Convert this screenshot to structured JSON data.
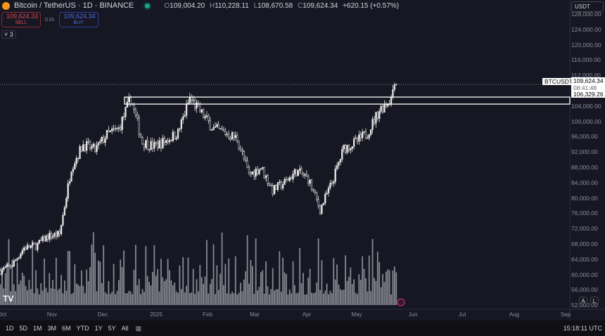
{
  "header": {
    "symbol": "Bitcoin / TetherUS · 1D · BINANCE",
    "open_label": "O",
    "open": "109,004.20",
    "high_label": "H",
    "high": "110,228.11",
    "low_label": "L",
    "low": "108,670.58",
    "close_label": "C",
    "close": "109,624.34",
    "change": "+620.15 (+0.57%)"
  },
  "trade": {
    "sell_price": "109,624.33",
    "sell_label": "SELL",
    "spread": "0.01",
    "buy_price": "109,624.34",
    "buy_label": "BUY"
  },
  "indicators_collapse": "3",
  "currency": "USDT",
  "price_axis": [
    "128,000.00",
    "124,000.00",
    "120,000.00",
    "116,000.00",
    "112,000.00",
    "104,000.00",
    "100,000.00",
    "96,000.00",
    "92,000.00",
    "88,000.00",
    "84,000.00",
    "80,000.00",
    "76,000.00",
    "72,000.00",
    "68,000.00",
    "64,000.00",
    "60,000.00",
    "56,000.00",
    "52,000.00"
  ],
  "price_tags": {
    "symbol": "BTCUSDT",
    "last": "109,624.34",
    "countdown": "08:41:48",
    "level": "106,329.26"
  },
  "time_axis": [
    "Oct",
    "Nov",
    "Dec",
    "2025",
    "Feb",
    "Mar",
    "Apr",
    "May",
    "Jun",
    "Jul",
    "Aug",
    "Sep"
  ],
  "ranges": [
    "1D",
    "5D",
    "1M",
    "3M",
    "6M",
    "YTD",
    "1Y",
    "5Y",
    "All"
  ],
  "clock": "15:18:11 UTC",
  "scale_buttons": {
    "auto": "A",
    "log": "L"
  },
  "logo": "TV",
  "colors": {
    "candle": "#e8e8e8",
    "volume": "#9a9ca6",
    "background": "#161722",
    "sell": "#e04a55",
    "buy": "#4e6bf0"
  },
  "chart_data": {
    "type": "candlestick",
    "interval": "1D",
    "ylim": [
      50000,
      130000
    ],
    "weekly_close_approx": [
      [
        "2024-10-01",
        61000
      ],
      [
        "2024-10-08",
        62500
      ],
      [
        "2024-10-15",
        67000
      ],
      [
        "2024-10-22",
        67500
      ],
      [
        "2024-10-29",
        70000
      ],
      [
        "2024-11-05",
        70500
      ],
      [
        "2024-11-12",
        88000
      ],
      [
        "2024-11-19",
        94000
      ],
      [
        "2024-11-26",
        92500
      ],
      [
        "2024-12-03",
        96500
      ],
      [
        "2024-12-10",
        98000
      ],
      [
        "2024-12-17",
        106000
      ],
      [
        "2024-12-24",
        94500
      ],
      [
        "2024-12-31",
        93500
      ],
      [
        "2025-01-07",
        95000
      ],
      [
        "2025-01-14",
        97000
      ],
      [
        "2025-01-21",
        106000
      ],
      [
        "2025-01-28",
        102000
      ],
      [
        "2025-02-04",
        98000
      ],
      [
        "2025-02-11",
        97000
      ],
      [
        "2025-02-18",
        95500
      ],
      [
        "2025-02-25",
        86000
      ],
      [
        "2025-03-04",
        88000
      ],
      [
        "2025-03-11",
        82000
      ],
      [
        "2025-03-18",
        84000
      ],
      [
        "2025-03-25",
        87000
      ],
      [
        "2025-04-01",
        85000
      ],
      [
        "2025-04-08",
        77000
      ],
      [
        "2025-04-15",
        84000
      ],
      [
        "2025-04-22",
        93000
      ],
      [
        "2025-04-29",
        94500
      ],
      [
        "2025-05-06",
        97000
      ],
      [
        "2025-05-13",
        103000
      ],
      [
        "2025-05-20",
        106000
      ],
      [
        "2025-05-22",
        111000
      ],
      [
        "2025-05-23",
        109624.34
      ]
    ],
    "levels": [
      {
        "type": "horizontal-zone",
        "from": 104500,
        "to": 106329.26
      },
      {
        "type": "last-price-line",
        "value": 109624.34
      }
    ]
  }
}
